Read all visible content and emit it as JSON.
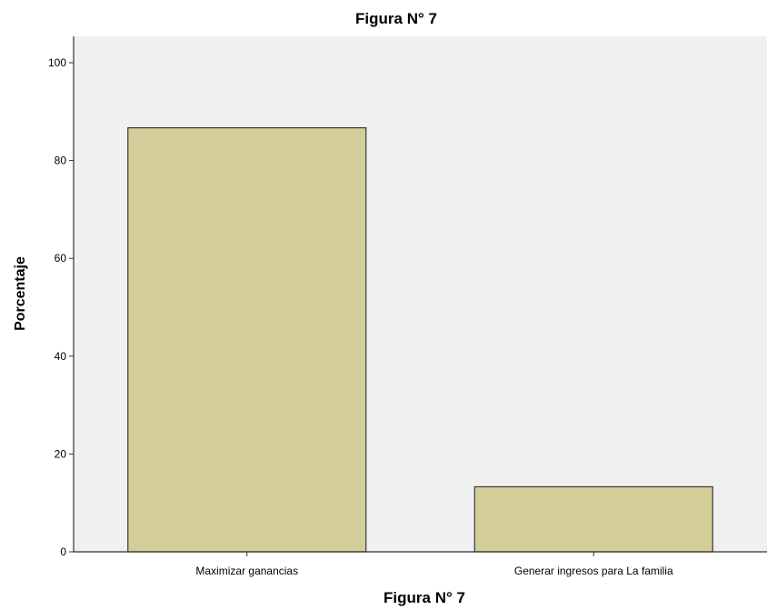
{
  "chart_data": {
    "type": "bar",
    "title": "Figura N° 7",
    "xlabel": "Figura N° 7",
    "ylabel": "Porcentaje",
    "categories": [
      "Maximizar ganancias",
      "Generar ingresos para La familia"
    ],
    "values": [
      86.7,
      13.3
    ],
    "ylim": [
      0,
      100
    ],
    "yticks": [
      0,
      20,
      40,
      60,
      80,
      100
    ],
    "grid": false,
    "legend": "none",
    "colors": {
      "bar_fill": "#d3ce99",
      "bar_stroke": "#3a3a3a",
      "plot_background": "#f0f0f0",
      "axis": "#333333"
    }
  }
}
